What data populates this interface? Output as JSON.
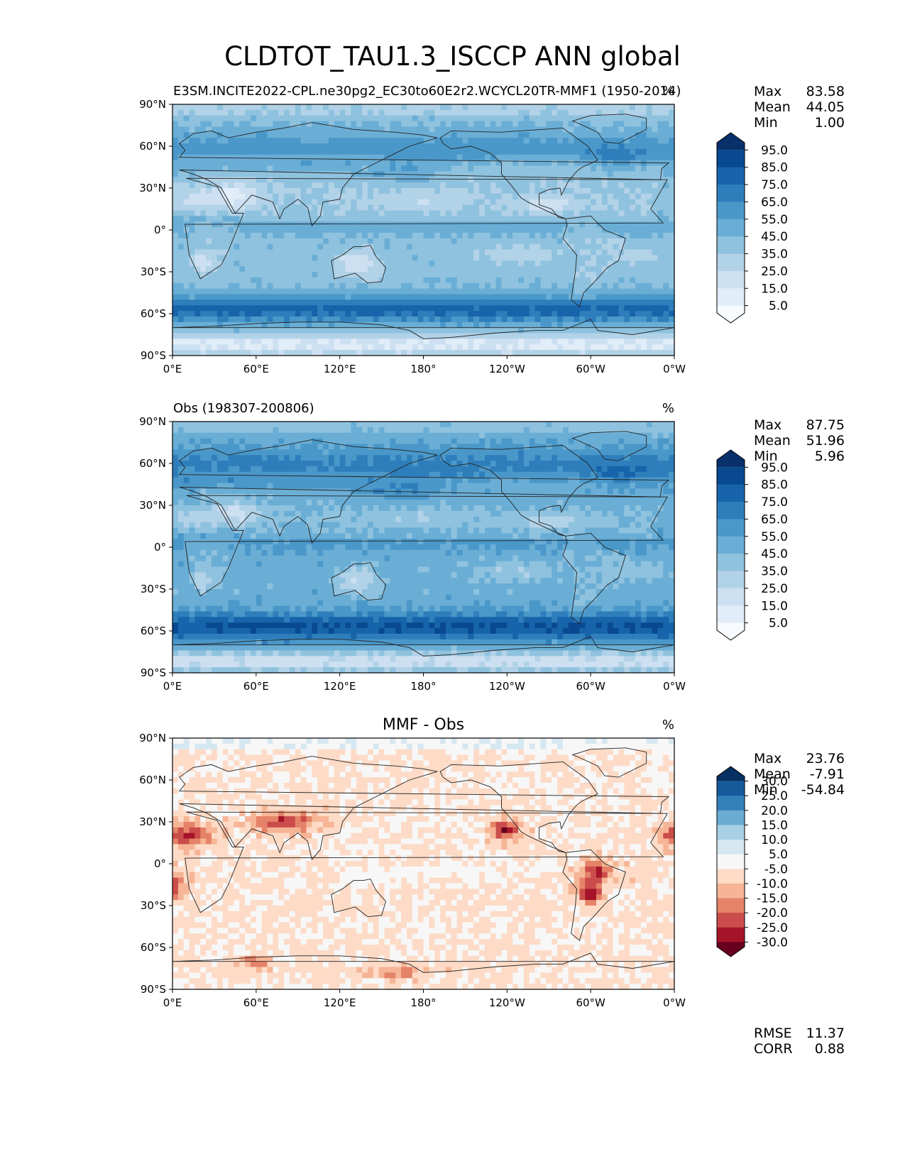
{
  "figure_title": "CLDTOT_TAU1.3_ISCCP ANN global",
  "colors": {
    "blues": [
      "#f7fbff",
      "#e1edf8",
      "#cde0f1",
      "#b2d2e8",
      "#8fc2de",
      "#6aaed6",
      "#4a98c9",
      "#2e7ebc",
      "#1764ab",
      "#084990",
      "#08306b"
    ],
    "rdbu": [
      "#67001f",
      "#a51429",
      "#cb4d4b",
      "#e58368",
      "#f6b596",
      "#fddbc7",
      "#f7f7f7",
      "#d5e7f0",
      "#a7d0e4",
      "#6aabd1",
      "#3480b9",
      "#175a9c",
      "#053061"
    ],
    "coast": "#222222"
  },
  "chart_data": [
    {
      "type": "heatmap",
      "title_left": "E3SM.INCITE2022-CPL.ne30pg2_EC30to60E2r2.WCYCL20TR-MMF1 (1950-2014)",
      "title_center": "",
      "units": "%",
      "stats": [
        {
          "label": "Max",
          "value": "83.58"
        },
        {
          "label": "Mean",
          "value": "44.05"
        },
        {
          "label": "Min",
          "value": "1.00"
        }
      ],
      "colorbar_ticks": [
        "95.0",
        "85.0",
        "75.0",
        "65.0",
        "55.0",
        "45.0",
        "35.0",
        "25.0",
        "15.0",
        "5.0"
      ],
      "xticks": [
        "0°E",
        "60°E",
        "120°E",
        "180°",
        "120°W",
        "60°W",
        "0°W"
      ],
      "yticks": [
        "90°N",
        "60°N",
        "30°N",
        "0°",
        "30°S",
        "60°S",
        "90°S"
      ]
    },
    {
      "type": "heatmap",
      "title_left": "Obs (198307-200806)",
      "title_center": "",
      "units": "%",
      "stats": [
        {
          "label": "Max",
          "value": "87.75"
        },
        {
          "label": "Mean",
          "value": "51.96"
        },
        {
          "label": "Min",
          "value": "5.96"
        }
      ],
      "colorbar_ticks": [
        "95.0",
        "85.0",
        "75.0",
        "65.0",
        "55.0",
        "45.0",
        "35.0",
        "25.0",
        "15.0",
        "5.0"
      ],
      "xticks": [
        "0°E",
        "60°E",
        "120°E",
        "180°",
        "120°W",
        "60°W",
        "0°W"
      ],
      "yticks": [
        "90°N",
        "60°N",
        "30°N",
        "0°",
        "30°S",
        "60°S",
        "90°S"
      ]
    },
    {
      "type": "heatmap",
      "title_left": "",
      "title_center": "MMF - Obs",
      "units": "%",
      "stats": [
        {
          "label": "Max",
          "value": "23.76"
        },
        {
          "label": "Mean",
          "value": "-7.91"
        },
        {
          "label": "Min",
          "value": "-54.84"
        }
      ],
      "extra_stats": [
        {
          "label": "RMSE",
          "value": "11.37"
        },
        {
          "label": "CORR",
          "value": "0.88"
        }
      ],
      "colorbar_ticks": [
        "30.0",
        "25.0",
        "20.0",
        "15.0",
        "10.0",
        "5.0",
        "-5.0",
        "-10.0",
        "-15.0",
        "-20.0",
        "-25.0",
        "-30.0"
      ],
      "xticks": [
        "0°E",
        "60°E",
        "120°E",
        "180°",
        "120°W",
        "60°W",
        "0°W"
      ],
      "yticks": [
        "90°N",
        "60°N",
        "30°N",
        "0°",
        "30°S",
        "60°S",
        "90°S"
      ]
    }
  ]
}
